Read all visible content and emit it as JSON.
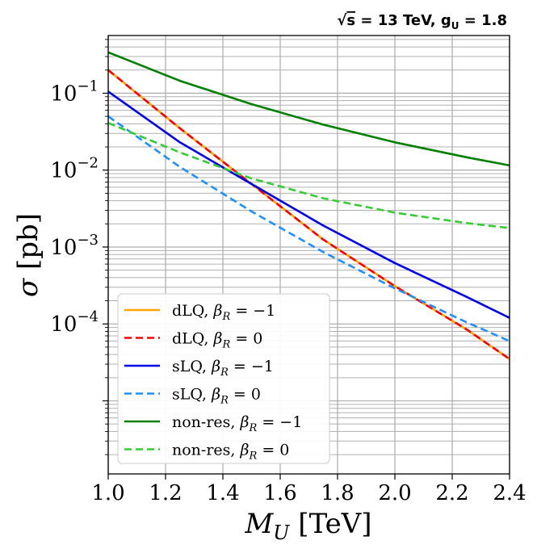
{
  "chart_data": {
    "type": "line",
    "title": "√s = 13 TeV, gU = 1.8",
    "title_parts": {
      "sqrt": "√",
      "s_label": "s",
      "energy": " =  13 TeV, ",
      "g": "g",
      "g_sub": "U",
      "g_value": " = 1.8"
    },
    "xlabel": "MU [TeV]",
    "xlabel_parts": {
      "M": "M",
      "sub": "U",
      "unit": " [TeV]"
    },
    "ylabel": "σ [pb]",
    "ylabel_parts": {
      "sigma": "σ",
      "unit": " [pb]"
    },
    "xlim": [
      1.0,
      2.4
    ],
    "ylim_log10": [
      -5.95,
      -0.25
    ],
    "yscale": "log",
    "grid": true,
    "x_ticks": [
      "1.0",
      "1.2",
      "1.4",
      "1.6",
      "1.8",
      "2.0",
      "2.2",
      "2.4"
    ],
    "y_ticks": [
      {
        "exp": -1,
        "base": "10",
        "sup": "−1"
      },
      {
        "exp": -2,
        "base": "10",
        "sup": "−2"
      },
      {
        "exp": -3,
        "base": "10",
        "sup": "−3"
      },
      {
        "exp": -4,
        "base": "10",
        "sup": "−4"
      }
    ],
    "legend_position": "lower-left",
    "series": [
      {
        "name": "dLQ, βR = −1",
        "label_prefix": "dLQ, ",
        "beta_value": " = −1",
        "color": "#ffa500",
        "dash": "solid",
        "x": [
          1.0,
          1.25,
          1.5,
          1.75,
          2.0,
          2.25,
          2.4
        ],
        "y": [
          0.2,
          0.035,
          0.0066,
          0.00125,
          0.00031,
          8.5e-05,
          3.5e-05
        ]
      },
      {
        "name": "dLQ, βR = 0",
        "label_prefix": "dLQ, ",
        "beta_value": " = 0",
        "color": "#ff0000",
        "dash": "dashed",
        "x": [
          1.0,
          1.25,
          1.5,
          1.75,
          2.0,
          2.25,
          2.4
        ],
        "y": [
          0.2,
          0.035,
          0.0066,
          0.00125,
          0.00031,
          8.5e-05,
          3.5e-05
        ]
      },
      {
        "name": "sLQ, βR = −1",
        "label_prefix": "sLQ, ",
        "beta_value": " = −1",
        "color": "#0000ee",
        "dash": "solid",
        "x": [
          1.0,
          1.25,
          1.5,
          1.75,
          2.0,
          2.25,
          2.4
        ],
        "y": [
          0.105,
          0.023,
          0.0066,
          0.0019,
          0.00062,
          0.000225,
          0.00012
        ]
      },
      {
        "name": "sLQ, βR = 0",
        "label_prefix": "sLQ, ",
        "beta_value": " = 0",
        "color": "#1e90ff",
        "dash": "dashed",
        "x": [
          1.0,
          1.25,
          1.5,
          1.75,
          2.0,
          2.25,
          2.4
        ],
        "y": [
          0.05,
          0.011,
          0.0029,
          0.00086,
          0.00029,
          0.000105,
          6e-05
        ]
      },
      {
        "name": "non-res, βR = −1",
        "label_prefix": "non-res, ",
        "beta_value": " = −1",
        "color": "#008000",
        "dash": "solid",
        "x": [
          1.0,
          1.25,
          1.5,
          1.75,
          2.0,
          2.25,
          2.4
        ],
        "y": [
          0.34,
          0.145,
          0.072,
          0.039,
          0.023,
          0.0147,
          0.0115
        ]
      },
      {
        "name": "non-res, βR = 0",
        "label_prefix": "non-res, ",
        "beta_value": " = 0",
        "color": "#32cd32",
        "dash": "dashed",
        "x": [
          1.0,
          1.25,
          1.5,
          1.75,
          2.0,
          2.25,
          2.4
        ],
        "y": [
          0.041,
          0.017,
          0.0078,
          0.0043,
          0.0028,
          0.00205,
          0.00177
        ]
      }
    ]
  }
}
